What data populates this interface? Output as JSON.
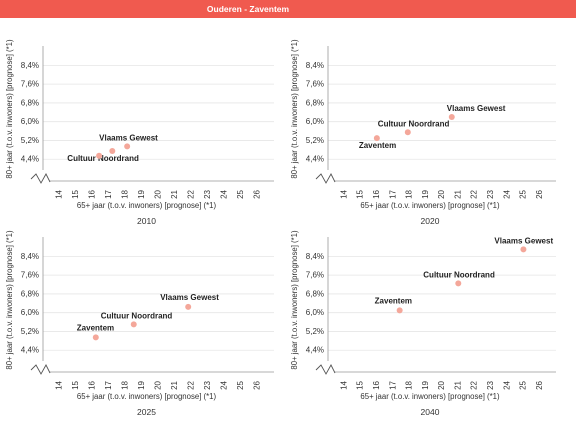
{
  "header": {
    "title": "Ouderen - Zaventem"
  },
  "colors": {
    "header_bg": "#f05a4f",
    "point": "#f4a79a",
    "grid": "#e6e6e6",
    "axis": "#999999"
  },
  "chart_data": [
    {
      "type": "scatter",
      "title": "2010",
      "xlabel": "65+ jaar (t.o.v. inwoners) [prognose] (*1)",
      "ylabel": "80+ jaar (t.o.v. inwoners) [prognose] (*1)",
      "xlim": [
        13,
        27
      ],
      "ylim": [
        3.6,
        8.8
      ],
      "x_ticks": [
        14,
        15,
        16,
        17,
        18,
        19,
        20,
        21,
        22,
        23,
        24,
        25,
        26
      ],
      "y_ticks": [
        "4,4%",
        "5,2%",
        "6,0%",
        "6,8%",
        "7,6%",
        "8,4%"
      ],
      "points": [
        {
          "label": "Vlaams Gewest",
          "x": 18.1,
          "y": 4.95
        },
        {
          "label": "Cultuur Noordrand",
          "x": 17.2,
          "y": 4.75
        },
        {
          "label": "",
          "x": 16.4,
          "y": 4.55
        }
      ]
    },
    {
      "type": "scatter",
      "title": "2020",
      "xlabel": "65+ jaar (t.o.v. inwoners) [prognose] (*1)",
      "ylabel": "80+ jaar (t.o.v. inwoners) [prognose] (*1)",
      "xlim": [
        13,
        27
      ],
      "ylim": [
        3.6,
        8.8
      ],
      "x_ticks": [
        14,
        15,
        16,
        17,
        18,
        19,
        20,
        21,
        22,
        23,
        24,
        25,
        26
      ],
      "y_ticks": [
        "4,4%",
        "5,2%",
        "6,0%",
        "6,8%",
        "7,6%",
        "8,4%"
      ],
      "points": [
        {
          "label": "Vlaams Gewest",
          "x": 20.6,
          "y": 6.2
        },
        {
          "label": "Cultuur Noordrand",
          "x": 17.9,
          "y": 5.55
        },
        {
          "label": "Zaventem",
          "x": 16.0,
          "y": 5.3
        }
      ]
    },
    {
      "type": "scatter",
      "title": "2025",
      "xlabel": "65+ jaar (t.o.v. inwoners) [prognose] (*1)",
      "ylabel": "80+ jaar (t.o.v. inwoners) [prognose] (*1)",
      "xlim": [
        13,
        27
      ],
      "ylim": [
        3.6,
        8.8
      ],
      "x_ticks": [
        14,
        15,
        16,
        17,
        18,
        19,
        20,
        21,
        22,
        23,
        24,
        25,
        26
      ],
      "y_ticks": [
        "4,4%",
        "5,2%",
        "6,0%",
        "6,8%",
        "7,6%",
        "8,4%"
      ],
      "points": [
        {
          "label": "Vlaams Gewest",
          "x": 21.8,
          "y": 6.25
        },
        {
          "label": "Cultuur Noordrand",
          "x": 18.5,
          "y": 5.5
        },
        {
          "label": "Zaventem",
          "x": 16.2,
          "y": 4.95
        }
      ]
    },
    {
      "type": "scatter",
      "title": "2040",
      "xlabel": "65+ jaar (t.o.v. inwoners) [prognose] (*1)",
      "ylabel": "80+ jaar (t.o.v. inwoners) [prognose] (*1)",
      "xlim": [
        13,
        27
      ],
      "ylim": [
        3.6,
        8.8
      ],
      "x_ticks": [
        14,
        15,
        16,
        17,
        18,
        19,
        20,
        21,
        22,
        23,
        24,
        25,
        26
      ],
      "y_ticks": [
        "4,4%",
        "5,2%",
        "6,0%",
        "6,8%",
        "7,6%",
        "8,4%"
      ],
      "points": [
        {
          "label": "Vlaams Gewest",
          "x": 25.0,
          "y": 8.7
        },
        {
          "label": "Cultuur Noordrand",
          "x": 21.0,
          "y": 7.25
        },
        {
          "label": "Zaventem",
          "x": 17.4,
          "y": 6.1
        }
      ]
    }
  ]
}
